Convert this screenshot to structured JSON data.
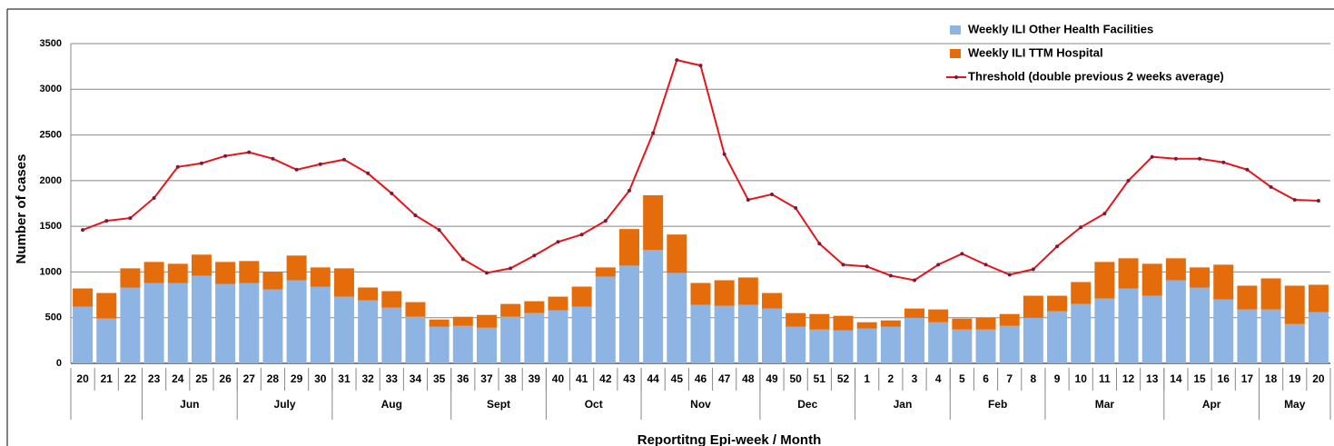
{
  "chart_data": {
    "type": "stacked-bar-line",
    "y_axis_label": "Number of cases",
    "x_axis_label": "Reportitng Epi-week / Month",
    "categories": [
      "20",
      "21",
      "22",
      "23",
      "24",
      "25",
      "26",
      "27",
      "28",
      "29",
      "30",
      "31",
      "32",
      "33",
      "34",
      "35",
      "36",
      "37",
      "38",
      "39",
      "40",
      "41",
      "42",
      "43",
      "44",
      "45",
      "46",
      "47",
      "48",
      "49",
      "50",
      "51",
      "52",
      "1",
      "2",
      "3",
      "4",
      "5",
      "6",
      "7",
      "8",
      "9",
      "10",
      "11",
      "12",
      "13",
      "14",
      "15",
      "16",
      "17",
      "18",
      "19",
      "20"
    ],
    "months": [
      null,
      null,
      null,
      "Jun",
      null,
      null,
      null,
      "July",
      null,
      null,
      null,
      "Aug",
      null,
      null,
      null,
      null,
      "Sept",
      null,
      null,
      null,
      "Oct",
      null,
      null,
      null,
      "Nov",
      null,
      null,
      null,
      null,
      "Dec",
      null,
      null,
      null,
      "Jan",
      null,
      null,
      null,
      "Feb",
      null,
      null,
      null,
      "Mar",
      null,
      null,
      null,
      null,
      "Apr",
      null,
      null,
      null,
      "May",
      null,
      null
    ],
    "series": [
      {
        "name": "Weekly ILI Other Health Facilities",
        "color": "#8db4e2",
        "kind": "bar",
        "values": [
          620,
          490,
          830,
          880,
          880,
          960,
          870,
          880,
          810,
          910,
          840,
          730,
          690,
          610,
          510,
          400,
          410,
          390,
          510,
          550,
          580,
          620,
          950,
          1070,
          1240,
          990,
          640,
          630,
          640,
          600,
          400,
          370,
          360,
          380,
          400,
          500,
          450,
          370,
          370,
          410,
          500,
          570,
          650,
          710,
          820,
          740,
          910,
          830,
          700,
          590,
          590,
          430,
          560
        ]
      },
      {
        "name": "Weekly ILI TTM Hospital",
        "color": "#e46c0a",
        "kind": "bar",
        "values": [
          200,
          280,
          210,
          230,
          210,
          230,
          240,
          240,
          190,
          270,
          210,
          310,
          140,
          180,
          160,
          80,
          100,
          140,
          140,
          130,
          150,
          220,
          100,
          400,
          600,
          420,
          240,
          280,
          300,
          170,
          150,
          170,
          160,
          70,
          70,
          100,
          140,
          120,
          130,
          130,
          240,
          170,
          240,
          400,
          330,
          350,
          240,
          220,
          380,
          260,
          340,
          420,
          300
        ]
      },
      {
        "name": "Threshold (double previous 2 weeks average)",
        "color": "#e8141c",
        "kind": "line",
        "values": [
          1460,
          1560,
          1590,
          1810,
          2150,
          2190,
          2270,
          2310,
          2240,
          2120,
          2180,
          2230,
          2080,
          1860,
          1620,
          1460,
          1140,
          990,
          1040,
          1180,
          1330,
          1410,
          1560,
          1890,
          2520,
          3320,
          3260,
          2290,
          1790,
          1850,
          1700,
          1310,
          1080,
          1060,
          960,
          910,
          1080,
          1200,
          1080,
          970,
          1030,
          1280,
          1490,
          1640,
          2000,
          2260,
          2240,
          2240,
          2200,
          2120,
          1930,
          1790,
          1780
        ]
      }
    ],
    "ylim": [
      0,
      3500
    ],
    "yticks": [
      0,
      500,
      1000,
      1500,
      2000,
      2500,
      3000,
      3500
    ],
    "grid": true,
    "legend": "top-right"
  }
}
